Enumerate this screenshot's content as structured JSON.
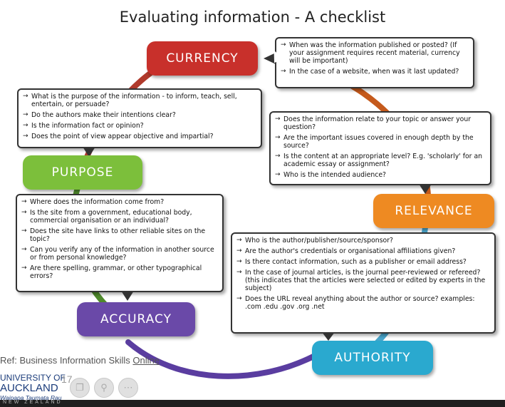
{
  "title": "Evaluating information - A checklist",
  "colors": {
    "currency": "#c8302b",
    "relevance": "#ee8a22",
    "authority": "#2aa9cf",
    "accuracy": "#6a49a8",
    "purpose": "#7cbf3b"
  },
  "nodes": {
    "currency": "CURRENCY",
    "purpose": "PURPOSE",
    "relevance": "RELEVANCE",
    "accuracy": "ACCURACY",
    "authority": "AUTHORITY"
  },
  "currency_box": [
    "When was the information published or posted? (If your assignment requires recent material, currency will be important)",
    "In the case of a website, when was it last updated?"
  ],
  "purpose_box": [
    "What is the purpose of the information - to inform, teach, sell, entertain, or persuade?",
    "Do the authors make their intentions clear?",
    "Is the information fact or opinion?",
    "Does the point of view appear objective and impartial?"
  ],
  "relevance_box": [
    "Does the information relate to your topic or answer your question?",
    "Are the important issues covered in enough depth by the source?",
    "Is the content at an appropriate level? E.g. 'scholarly' for an academic essay or assignment?",
    "Who is the intended audience?"
  ],
  "accuracy_box": [
    "Where does the information come from?",
    "Is the site from a government, educational body, commercial organisation or an individual?",
    "Does the site have links to other reliable sites on the topic?",
    "Can you verify any of the information in another source or from personal knowledge?",
    "Are there spelling, grammar, or other typographical errors?"
  ],
  "authority_box": [
    "Who is the author/publisher/source/sponsor?",
    "Are the author's credentials or organisational affiliations given?",
    "Is there contact information, such as a publisher or email address?",
    "In the case of journal articles, is the journal peer-reviewed or refereed? (this indicates that the articles were selected or edited by experts in the subject)",
    "Does the URL reveal anything about the author or source? examples: .com .edu .gov .org .net"
  ],
  "ref": {
    "prefix": "Ref: Business Information Skills ",
    "link": "Online"
  },
  "logo": {
    "line1": "UNIVERSITY OF",
    "line2": "AUCKLAND",
    "line3": "Waipapa Taumata Rau",
    "line4": "NEW ZEALAND"
  },
  "slide_number": "17",
  "controls": {
    "icons": [
      "copy-icon",
      "search-icon",
      "more-icon"
    ]
  }
}
